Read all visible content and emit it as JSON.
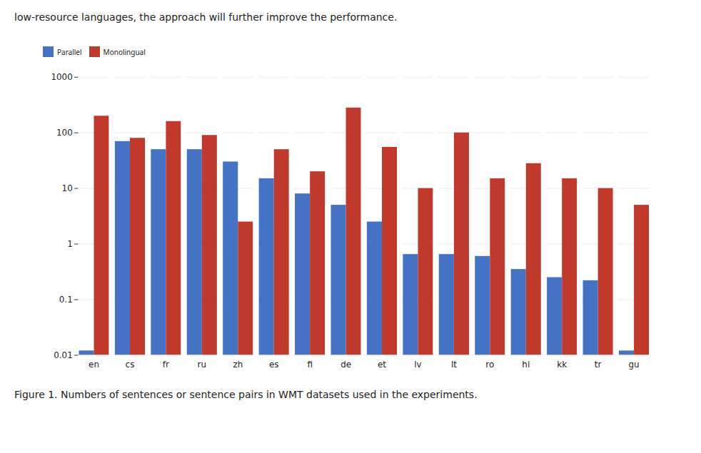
{
  "chart_data": {
    "type": "bar",
    "annotations": [
      "low-resource languages, the approach will further improve the performance.",
      "Figure 1. Numbers of sentences or sentence pairs in WMT datasets used in the experiments."
    ],
    "categories": [
      "en",
      "cs",
      "fr",
      "ru",
      "zh",
      "es",
      "fi",
      "de",
      "et",
      "lv",
      "lt",
      "ro",
      "hi",
      "kk",
      "tr",
      "gu"
    ],
    "series": [
      {
        "name": "Parallel",
        "color": "#4472C4",
        "values": [
          0.012,
          70,
          50,
          50,
          30,
          15,
          8,
          5,
          2.5,
          0.65,
          0.65,
          0.6,
          0.35,
          0.25,
          0.22,
          0.012
        ]
      },
      {
        "name": "Monolingual",
        "color": "#C0392B",
        "values": [
          200,
          80,
          160,
          90,
          2.5,
          50,
          20,
          280,
          55,
          10,
          100,
          15,
          28,
          15,
          10,
          5
        ]
      }
    ],
    "log": "y",
    "ylim": [
      0.01,
      1000
    ],
    "yticks": [
      0.01,
      0.1,
      1,
      10,
      100,
      1000
    ],
    "grid": true,
    "legend": "top"
  }
}
